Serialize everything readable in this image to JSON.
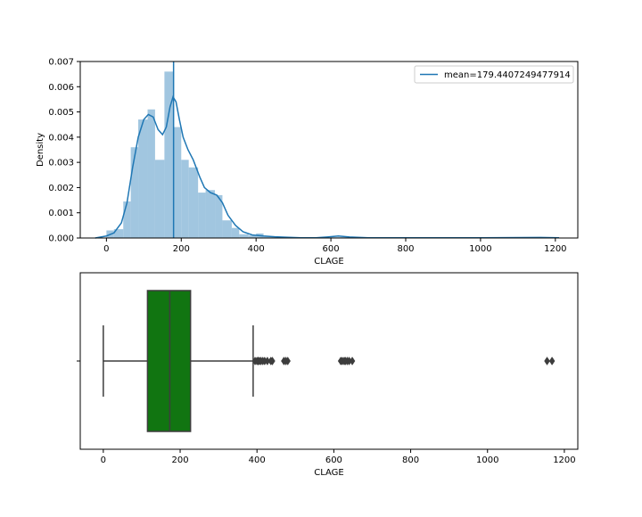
{
  "chart_data": [
    {
      "type": "histogram",
      "xlabel": "CLAGE",
      "ylabel": "Density",
      "xlim": [
        -70,
        1260
      ],
      "ylim": [
        0,
        0.007
      ],
      "xticks": [
        "0",
        "200",
        "400",
        "600",
        "800",
        "1000",
        "1200"
      ],
      "yticks": [
        "0.000",
        "0.001",
        "0.002",
        "0.003",
        "0.004",
        "0.005",
        "0.006",
        "0.007"
      ],
      "legend": {
        "placement": "top-right",
        "entries": [
          "mean=179.4407249477914"
        ]
      },
      "mean": 179.4407249477914,
      "bar_color": "#8ab8d8",
      "line_color": "#1f77b4",
      "bins": [
        {
          "x0": 0,
          "x1": 20,
          "density": 0.0003
        },
        {
          "x0": 20,
          "x1": 45,
          "density": 0.00035
        },
        {
          "x0": 45,
          "x1": 65,
          "density": 0.00145
        },
        {
          "x0": 65,
          "x1": 85,
          "density": 0.0036
        },
        {
          "x0": 85,
          "x1": 110,
          "density": 0.0047
        },
        {
          "x0": 110,
          "x1": 130,
          "density": 0.0051
        },
        {
          "x0": 130,
          "x1": 155,
          "density": 0.0031
        },
        {
          "x0": 155,
          "x1": 180,
          "density": 0.0066
        },
        {
          "x0": 180,
          "x1": 200,
          "density": 0.0044
        },
        {
          "x0": 200,
          "x1": 220,
          "density": 0.0031
        },
        {
          "x0": 220,
          "x1": 245,
          "density": 0.0028
        },
        {
          "x0": 245,
          "x1": 265,
          "density": 0.0018
        },
        {
          "x0": 265,
          "x1": 290,
          "density": 0.0019
        },
        {
          "x0": 290,
          "x1": 310,
          "density": 0.0017
        },
        {
          "x0": 310,
          "x1": 335,
          "density": 0.0007
        },
        {
          "x0": 335,
          "x1": 355,
          "density": 0.0004
        },
        {
          "x0": 355,
          "x1": 380,
          "density": 0.00015
        },
        {
          "x0": 380,
          "x1": 400,
          "density": 0.0001
        },
        {
          "x0": 400,
          "x1": 420,
          "density": 0.00018
        },
        {
          "x0": 420,
          "x1": 445,
          "density": 5e-05
        },
        {
          "x0": 445,
          "x1": 470,
          "density": 3e-05
        },
        {
          "x0": 600,
          "x1": 625,
          "density": 3e-05
        },
        {
          "x0": 625,
          "x1": 645,
          "density": 4e-05
        },
        {
          "x0": 1150,
          "x1": 1170,
          "density": 2e-05
        }
      ],
      "kde": [
        [
          -30,
          0.0
        ],
        [
          0,
          8e-05
        ],
        [
          20,
          0.0002
        ],
        [
          40,
          0.0006
        ],
        [
          55,
          0.0014
        ],
        [
          70,
          0.0028
        ],
        [
          85,
          0.004
        ],
        [
          100,
          0.0047
        ],
        [
          112,
          0.0049
        ],
        [
          125,
          0.0048
        ],
        [
          138,
          0.0043
        ],
        [
          150,
          0.0041
        ],
        [
          160,
          0.0044
        ],
        [
          170,
          0.0052
        ],
        [
          178,
          0.0056
        ],
        [
          186,
          0.0054
        ],
        [
          195,
          0.0047
        ],
        [
          205,
          0.004
        ],
        [
          218,
          0.0035
        ],
        [
          232,
          0.0031
        ],
        [
          250,
          0.0024
        ],
        [
          262,
          0.002
        ],
        [
          278,
          0.0018
        ],
        [
          295,
          0.0017
        ],
        [
          310,
          0.0014
        ],
        [
          325,
          0.0009
        ],
        [
          345,
          0.0005
        ],
        [
          365,
          0.00025
        ],
        [
          390,
          0.00012
        ],
        [
          420,
          8e-05
        ],
        [
          450,
          5e-05
        ],
        [
          480,
          3e-05
        ],
        [
          520,
          1e-05
        ],
        [
          560,
          1e-05
        ],
        [
          590,
          4e-05
        ],
        [
          620,
          8e-05
        ],
        [
          650,
          4e-05
        ],
        [
          700,
          1e-05
        ],
        [
          800,
          1e-05
        ],
        [
          1000,
          1e-05
        ],
        [
          1160,
          2e-05
        ],
        [
          1210,
          1e-05
        ]
      ]
    },
    {
      "type": "box",
      "xlabel": "CLAGE",
      "xlim": [
        -60,
        1235
      ],
      "xticks": [
        "0",
        "200",
        "400",
        "600",
        "800",
        "1000",
        "1200"
      ],
      "box_color": "#117511",
      "whisker_low": 0,
      "q1": 115,
      "median": 173,
      "q3": 227,
      "whisker_high": 390,
      "outliers": [
        395,
        400,
        403,
        406,
        410,
        415,
        420,
        427,
        436,
        440,
        470,
        475,
        480,
        618,
        622,
        627,
        630,
        635,
        640,
        648,
        1155,
        1168
      ]
    }
  ]
}
